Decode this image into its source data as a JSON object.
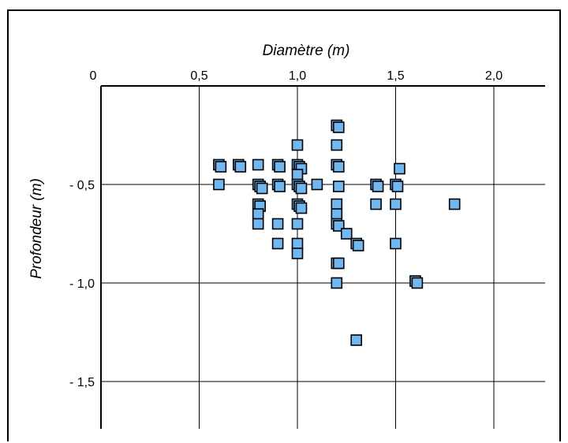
{
  "chart_data": {
    "type": "scatter",
    "title": "",
    "xlabel": "Diamètre (m)",
    "ylabel": "Profondeur (m)",
    "xlim": [
      0,
      2.25
    ],
    "ylim": [
      -1.75,
      0
    ],
    "x_ticks": [
      {
        "value": 0,
        "label": "0"
      },
      {
        "value": 0.5,
        "label": "0,5"
      },
      {
        "value": 1.0,
        "label": "1,0"
      },
      {
        "value": 1.5,
        "label": "1,5"
      },
      {
        "value": 2.0,
        "label": "2,0"
      }
    ],
    "y_ticks": [
      {
        "value": -0.5,
        "label": "- 0,5"
      },
      {
        "value": -1.0,
        "label": "- 1,0"
      },
      {
        "value": -1.5,
        "label": "- 1,5"
      }
    ],
    "x_axis_position": "top",
    "grid": true,
    "marker": {
      "shape": "square",
      "fill": "#6fb8f2",
      "stroke": "#000000"
    },
    "points": [
      {
        "x": 0.6,
        "y": -0.4
      },
      {
        "x": 0.61,
        "y": -0.41
      },
      {
        "x": 0.6,
        "y": -0.5
      },
      {
        "x": 0.7,
        "y": -0.4
      },
      {
        "x": 0.71,
        "y": -0.41
      },
      {
        "x": 0.8,
        "y": -0.4
      },
      {
        "x": 0.8,
        "y": -0.5
      },
      {
        "x": 0.81,
        "y": -0.51
      },
      {
        "x": 0.82,
        "y": -0.52
      },
      {
        "x": 0.8,
        "y": -0.6
      },
      {
        "x": 0.81,
        "y": -0.61
      },
      {
        "x": 0.8,
        "y": -0.65
      },
      {
        "x": 0.8,
        "y": -0.7
      },
      {
        "x": 0.9,
        "y": -0.4
      },
      {
        "x": 0.91,
        "y": -0.41
      },
      {
        "x": 0.9,
        "y": -0.5
      },
      {
        "x": 0.91,
        "y": -0.51
      },
      {
        "x": 0.9,
        "y": -0.7
      },
      {
        "x": 0.9,
        "y": -0.8
      },
      {
        "x": 1.0,
        "y": -0.3
      },
      {
        "x": 1.0,
        "y": -0.4
      },
      {
        "x": 1.01,
        "y": -0.41
      },
      {
        "x": 1.02,
        "y": -0.42
      },
      {
        "x": 1.0,
        "y": -0.45
      },
      {
        "x": 1.0,
        "y": -0.5
      },
      {
        "x": 1.01,
        "y": -0.51
      },
      {
        "x": 1.02,
        "y": -0.52
      },
      {
        "x": 1.0,
        "y": -0.6
      },
      {
        "x": 1.01,
        "y": -0.61
      },
      {
        "x": 1.02,
        "y": -0.62
      },
      {
        "x": 1.0,
        "y": -0.7
      },
      {
        "x": 1.0,
        "y": -0.8
      },
      {
        "x": 1.0,
        "y": -0.85
      },
      {
        "x": 1.1,
        "y": -0.5
      },
      {
        "x": 1.2,
        "y": -0.2
      },
      {
        "x": 1.21,
        "y": -0.21
      },
      {
        "x": 1.2,
        "y": -0.3
      },
      {
        "x": 1.2,
        "y": -0.4
      },
      {
        "x": 1.21,
        "y": -0.41
      },
      {
        "x": 1.21,
        "y": -0.51
      },
      {
        "x": 1.2,
        "y": -0.6
      },
      {
        "x": 1.2,
        "y": -0.65
      },
      {
        "x": 1.2,
        "y": -0.7
      },
      {
        "x": 1.21,
        "y": -0.71
      },
      {
        "x": 1.25,
        "y": -0.75
      },
      {
        "x": 1.2,
        "y": -0.9
      },
      {
        "x": 1.21,
        "y": -0.9
      },
      {
        "x": 1.2,
        "y": -1.0
      },
      {
        "x": 1.3,
        "y": -0.8
      },
      {
        "x": 1.31,
        "y": -0.81
      },
      {
        "x": 1.3,
        "y": -1.29
      },
      {
        "x": 1.4,
        "y": -0.5
      },
      {
        "x": 1.41,
        "y": -0.51
      },
      {
        "x": 1.4,
        "y": -0.6
      },
      {
        "x": 1.5,
        "y": -0.5
      },
      {
        "x": 1.51,
        "y": -0.51
      },
      {
        "x": 1.52,
        "y": -0.42
      },
      {
        "x": 1.5,
        "y": -0.6
      },
      {
        "x": 1.5,
        "y": -0.8
      },
      {
        "x": 1.6,
        "y": -0.99
      },
      {
        "x": 1.61,
        "y": -1.0
      },
      {
        "x": 1.8,
        "y": -0.6
      }
    ]
  }
}
